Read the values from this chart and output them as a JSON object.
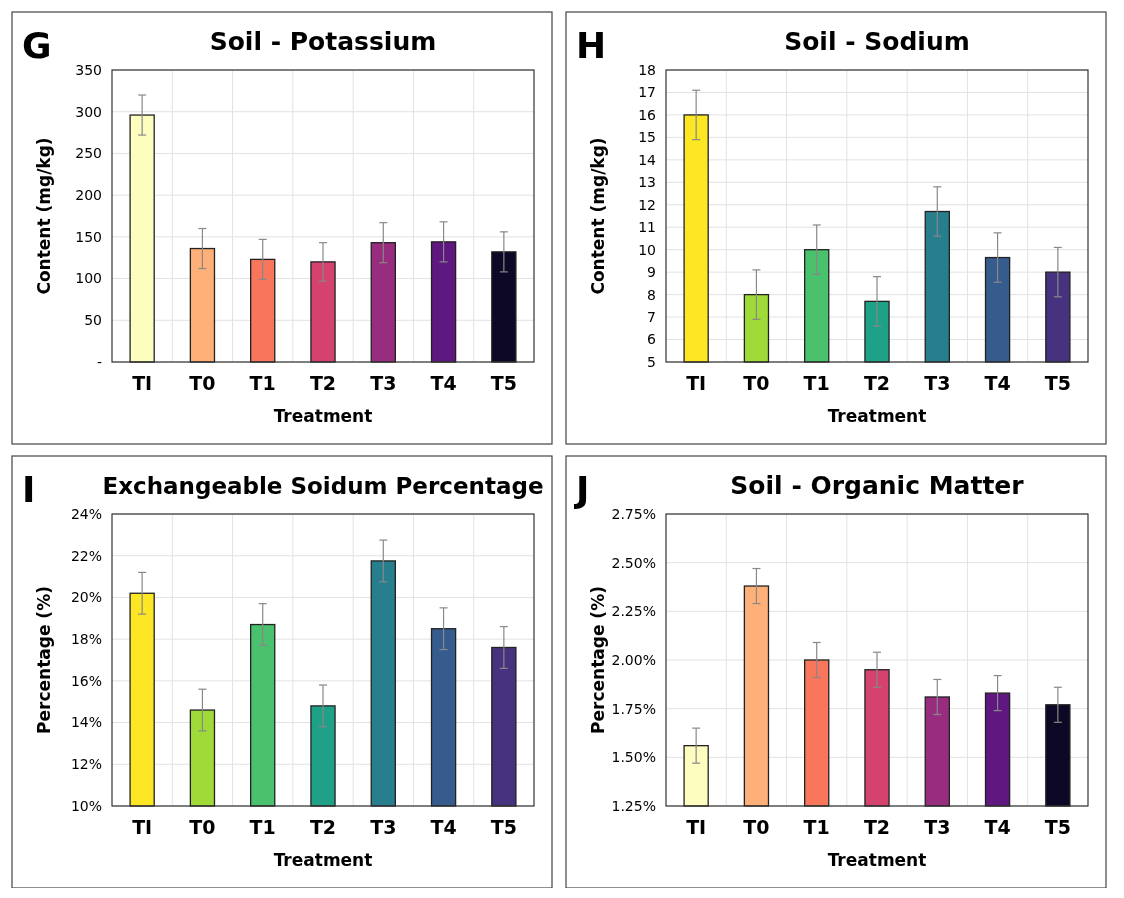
{
  "chart_data": [
    {
      "type": "bar",
      "title": "Soil - Potassium",
      "annotations": [
        "G"
      ],
      "xlabel": "Treatment",
      "ylabel": "Content (mg/kg)",
      "categories": [
        "TI",
        "T0",
        "T1",
        "T2",
        "T3",
        "T4",
        "T5"
      ],
      "values": [
        296,
        136,
        123,
        120,
        143,
        144,
        132
      ],
      "errors": [
        24,
        24,
        24,
        23,
        24,
        24,
        24
      ],
      "colors": [
        "#fcfdbf",
        "#feb078",
        "#f8765c",
        "#d3436e",
        "#982d80",
        "#5f187f",
        "#0c0826"
      ],
      "ylim": [
        0,
        350
      ],
      "yticks": [
        {
          "value": 0,
          "label": "-"
        },
        50,
        100,
        150,
        200,
        250,
        300,
        350
      ],
      "grid": true
    },
    {
      "type": "bar",
      "title": "Soil - Sodium",
      "annotations": [
        "H"
      ],
      "xlabel": "Treatment",
      "ylabel": "Content (mg/kg)",
      "categories": [
        "TI",
        "T0",
        "T1",
        "T2",
        "T3",
        "T4",
        "T5"
      ],
      "values": [
        16.0,
        8.0,
        10.0,
        7.7,
        11.7,
        9.65,
        9.0
      ],
      "errors": [
        1.1,
        1.1,
        1.1,
        1.1,
        1.1,
        1.1,
        1.1
      ],
      "colors": [
        "#fde725",
        "#a0da39",
        "#4ac16d",
        "#1fa187",
        "#277f8e",
        "#365c8d",
        "#46327e"
      ],
      "ylim": [
        5,
        18
      ],
      "yticks": [
        5,
        6,
        7,
        8,
        9,
        10,
        11,
        12,
        13,
        14,
        15,
        16,
        17,
        18
      ],
      "grid": true
    },
    {
      "type": "bar",
      "title": "Exchangeable Soidum Percentage",
      "annotations": [
        "I"
      ],
      "xlabel": "Treatment",
      "ylabel": "Percentage (%)",
      "categories": [
        "TI",
        "T0",
        "T1",
        "T2",
        "T3",
        "T4",
        "T5"
      ],
      "values": [
        20.2,
        14.6,
        18.7,
        14.8,
        21.75,
        18.5,
        17.6
      ],
      "errors": [
        1.0,
        1.0,
        1.0,
        1.0,
        1.0,
        1.0,
        1.0
      ],
      "colors": [
        "#fde725",
        "#a0da39",
        "#4ac16d",
        "#1fa187",
        "#277f8e",
        "#365c8d",
        "#46327e"
      ],
      "ylim": [
        10,
        24
      ],
      "yticks": [
        {
          "value": 10,
          "label": "10%"
        },
        {
          "value": 12,
          "label": "12%"
        },
        {
          "value": 14,
          "label": "14%"
        },
        {
          "value": 16,
          "label": "16%"
        },
        {
          "value": 18,
          "label": "18%"
        },
        {
          "value": 20,
          "label": "20%"
        },
        {
          "value": 22,
          "label": "22%"
        },
        {
          "value": 24,
          "label": "24%"
        }
      ],
      "grid": true
    },
    {
      "type": "bar",
      "title": "Soil - Organic Matter",
      "annotations": [
        "J"
      ],
      "xlabel": "Treatment",
      "ylabel": "Percentage (%)",
      "categories": [
        "TI",
        "T0",
        "T1",
        "T2",
        "T3",
        "T4",
        "T5"
      ],
      "values": [
        1.56,
        2.38,
        2.0,
        1.95,
        1.81,
        1.83,
        1.77
      ],
      "errors": [
        0.09,
        0.09,
        0.09,
        0.09,
        0.09,
        0.09,
        0.09
      ],
      "colors": [
        "#fcfdbf",
        "#feb078",
        "#f8765c",
        "#d3436e",
        "#982d80",
        "#5f187f",
        "#0c0826"
      ],
      "ylim": [
        1.25,
        2.75
      ],
      "yticks": [
        {
          "value": 1.25,
          "label": "1.25%"
        },
        {
          "value": 1.5,
          "label": "1.50%"
        },
        {
          "value": 1.75,
          "label": "1.75%"
        },
        {
          "value": 2.0,
          "label": "2.00%"
        },
        {
          "value": 2.25,
          "label": "2.25%"
        },
        {
          "value": 2.5,
          "label": "2.50%"
        },
        {
          "value": 2.75,
          "label": "2.75%"
        }
      ],
      "grid": true
    }
  ]
}
